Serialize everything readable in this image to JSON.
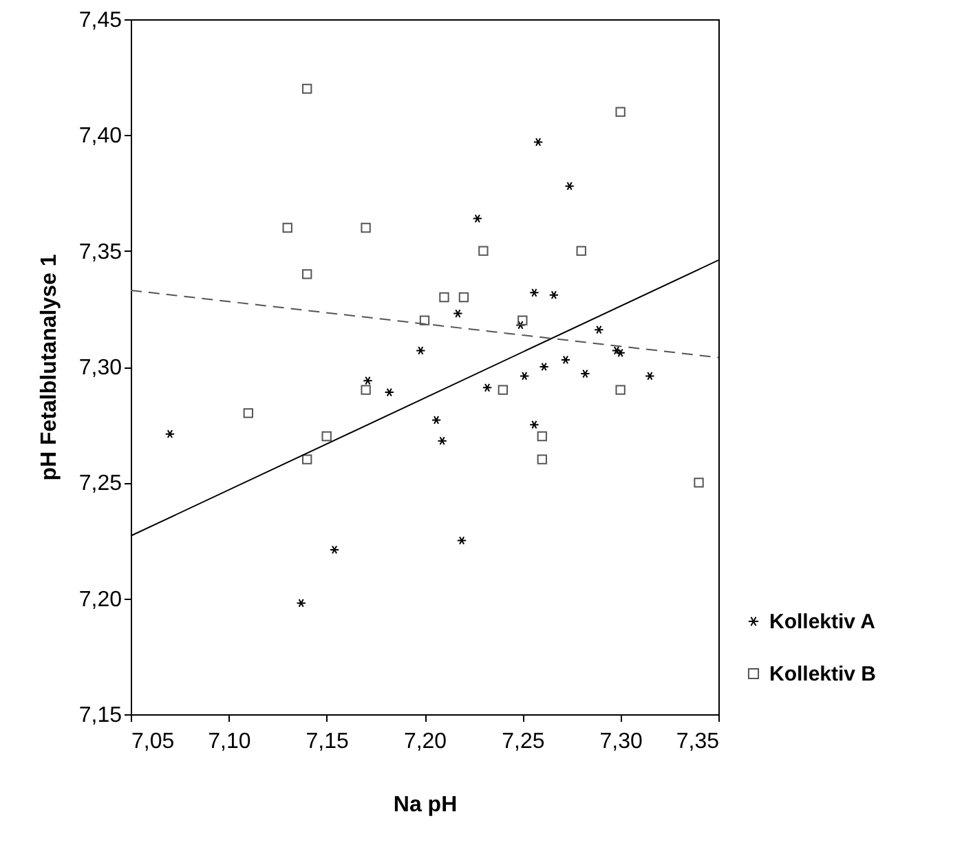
{
  "chart_data": {
    "type": "scatter",
    "xlabel": "Na pH",
    "ylabel": "pH Fetalblutanalyse 1",
    "xlim": [
      7.05,
      7.35
    ],
    "ylim": [
      7.15,
      7.45
    ],
    "xticks": [
      {
        "value": 7.05,
        "label": "7,05"
      },
      {
        "value": 7.1,
        "label": "7,10"
      },
      {
        "value": 7.15,
        "label": "7,15"
      },
      {
        "value": 7.2,
        "label": "7,20"
      },
      {
        "value": 7.25,
        "label": "7,25"
      },
      {
        "value": 7.3,
        "label": "7,30"
      },
      {
        "value": 7.35,
        "label": "7,35"
      }
    ],
    "yticks": [
      {
        "value": 7.15,
        "label": "7,15"
      },
      {
        "value": 7.2,
        "label": "7,20"
      },
      {
        "value": 7.25,
        "label": "7,25"
      },
      {
        "value": 7.3,
        "label": "7,30"
      },
      {
        "value": 7.35,
        "label": "7,35"
      },
      {
        "value": 7.4,
        "label": "7,40"
      },
      {
        "value": 7.45,
        "label": "7,45"
      }
    ],
    "grid": false,
    "legend": "bottom right",
    "series": [
      {
        "name": "Kollektiv A",
        "color": "#000000",
        "marker": "cross",
        "x": [
          7.07,
          7.137,
          7.154,
          7.171,
          7.182,
          7.198,
          7.206,
          7.209,
          7.217,
          7.219,
          7.227,
          7.232,
          7.249,
          7.251,
          7.256,
          7.256,
          7.258,
          7.261,
          7.266,
          7.272,
          7.274,
          7.282,
          7.289,
          7.298,
          7.3,
          7.315
        ],
        "values": [
          7.271,
          7.198,
          7.221,
          7.294,
          7.289,
          7.307,
          7.277,
          7.268,
          7.323,
          7.225,
          7.364,
          7.291,
          7.318,
          7.296,
          7.332,
          7.275,
          7.397,
          7.3,
          7.331,
          7.303,
          7.378,
          7.297,
          7.316,
          7.307,
          7.306,
          7.296
        ]
      },
      {
        "name": "Kollektiv B",
        "color": "#555555",
        "marker": "square",
        "x": [
          7.11,
          7.13,
          7.14,
          7.14,
          7.14,
          7.15,
          7.17,
          7.17,
          7.2,
          7.21,
          7.22,
          7.23,
          7.24,
          7.25,
          7.26,
          7.26,
          7.28,
          7.3,
          7.3,
          7.34
        ],
        "values": [
          7.28,
          7.36,
          7.42,
          7.34,
          7.26,
          7.27,
          7.36,
          7.29,
          7.32,
          7.33,
          7.33,
          7.35,
          7.29,
          7.32,
          7.27,
          7.26,
          7.35,
          7.41,
          7.29,
          7.25
        ]
      },
      {
        "type": "line",
        "color": "#000000",
        "line_style": "solid",
        "x": [
          7.05,
          7.35
        ],
        "values": [
          7.227,
          7.346
        ]
      },
      {
        "type": "line",
        "color": "#555555",
        "line_style": "dashed",
        "x": [
          7.05,
          7.35
        ],
        "values": [
          7.333,
          7.304
        ]
      }
    ]
  }
}
